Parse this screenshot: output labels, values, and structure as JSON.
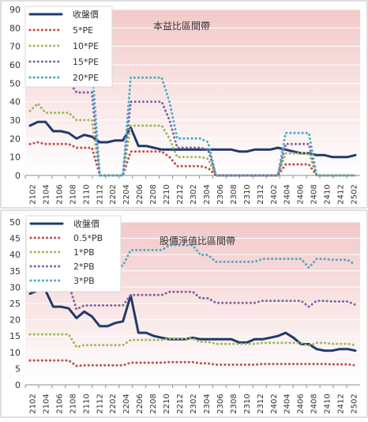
{
  "chart_data": [
    {
      "type": "line",
      "title": "本益比區間帶",
      "ylim": [
        0,
        90
      ],
      "yticks": [
        0,
        10,
        20,
        30,
        40,
        50,
        60,
        70,
        80,
        90
      ],
      "xticks": [
        "2102",
        "2104",
        "2106",
        "2108",
        "2110",
        "2112",
        "2202",
        "2204",
        "2206",
        "2208",
        "2210",
        "2212",
        "2302",
        "2304",
        "2306",
        "2308",
        "2310",
        "2312",
        "2402",
        "2404",
        "2406",
        "2408",
        "2410",
        "2412",
        "2502"
      ],
      "background_gradient": [
        "#f2c9c9",
        "#ffffff"
      ],
      "series": [
        {
          "name": "收盤價",
          "color": "#1f3a6b",
          "style": "solid",
          "values": [
            27,
            29,
            29,
            24,
            24,
            23,
            20,
            22,
            21,
            18,
            18,
            19,
            19,
            26,
            16,
            16,
            15,
            14,
            14,
            14,
            14,
            14,
            14,
            14,
            14,
            14,
            14,
            13,
            13,
            14,
            14,
            14,
            15,
            14,
            13,
            12,
            12,
            11,
            11,
            10,
            10,
            10,
            11
          ]
        },
        {
          "name": "5*PE",
          "color": "#c0504d",
          "style": "dotted",
          "values": [
            17,
            18,
            17,
            17,
            17,
            17,
            15,
            15,
            15,
            0,
            0,
            0,
            0,
            13,
            13,
            13,
            13,
            13,
            10,
            5,
            5,
            5,
            5,
            4,
            0,
            0,
            0,
            0,
            0,
            0,
            0,
            0,
            0,
            6,
            6,
            6,
            6,
            0,
            0,
            0,
            0,
            0,
            0
          ]
        },
        {
          "name": "10*PE",
          "color": "#9bbb59",
          "style": "dotted",
          "values": [
            35,
            39,
            34,
            34,
            34,
            34,
            30,
            30,
            30,
            0,
            0,
            0,
            0,
            27,
            27,
            27,
            27,
            27,
            20,
            10,
            10,
            10,
            10,
            9,
            0,
            0,
            0,
            0,
            0,
            0,
            0,
            0,
            0,
            12,
            12,
            12,
            12,
            0,
            0,
            0,
            0,
            0,
            0
          ]
        },
        {
          "name": "15*PE",
          "color": "#8064a2",
          "style": "dotted",
          "values": [
            52,
            58,
            51,
            51,
            51,
            51,
            45,
            45,
            45,
            0,
            0,
            0,
            0,
            40,
            40,
            40,
            40,
            40,
            30,
            15,
            15,
            15,
            15,
            14,
            0,
            0,
            0,
            0,
            0,
            0,
            0,
            0,
            0,
            17,
            17,
            17,
            17,
            0,
            0,
            0,
            0,
            0,
            0
          ]
        },
        {
          "name": "20*PE",
          "color": "#4bacc6",
          "style": "dotted",
          "values": [
            69,
            77,
            68,
            68,
            68,
            68,
            60,
            60,
            60,
            0,
            0,
            0,
            0,
            53,
            53,
            53,
            53,
            53,
            40,
            20,
            20,
            20,
            20,
            18,
            0,
            0,
            0,
            0,
            0,
            0,
            0,
            0,
            0,
            23,
            23,
            23,
            23,
            0,
            0,
            0,
            0,
            0,
            0
          ]
        }
      ]
    },
    {
      "type": "line",
      "title": "股價淨值比區間帶",
      "ylim": [
        0,
        50
      ],
      "yticks": [
        0,
        5,
        10,
        15,
        20,
        25,
        30,
        35,
        40,
        45,
        50
      ],
      "xticks": [
        "2102",
        "2104",
        "2106",
        "2108",
        "2110",
        "2112",
        "2202",
        "2204",
        "2206",
        "2208",
        "2210",
        "2212",
        "2302",
        "2304",
        "2306",
        "2308",
        "2310",
        "2312",
        "2402",
        "2404",
        "2406",
        "2408",
        "2410",
        "2412",
        "2502"
      ],
      "background_gradient": [
        "#f2c9c9",
        "#ffffff"
      ],
      "series": [
        {
          "name": "收盤價",
          "color": "#1f3a6b",
          "style": "solid",
          "values": [
            28,
            29,
            29,
            24,
            24,
            23.5,
            20.5,
            22.5,
            21,
            18,
            18,
            19,
            19.5,
            27.5,
            16,
            16,
            15,
            14.5,
            14,
            14,
            14,
            14.5,
            14,
            14,
            14,
            14,
            14,
            13,
            13,
            14,
            14,
            14.5,
            15,
            16,
            14.5,
            12.5,
            12.5,
            11,
            10.5,
            10.5,
            11,
            11,
            10.5
          ]
        },
        {
          "name": "0.5*PB",
          "color": "#c0504d",
          "style": "dotted",
          "values": [
            7.5,
            7.5,
            7.5,
            7.5,
            7.5,
            7.5,
            5.8,
            6,
            6,
            6,
            6,
            6,
            6,
            6.8,
            6.8,
            6.8,
            6.8,
            6.8,
            7,
            7,
            7,
            7,
            6.6,
            6.6,
            6.2,
            6.2,
            6.2,
            6.2,
            6.2,
            6.2,
            6.4,
            6.4,
            6.4,
            6.4,
            6.4,
            6.4,
            6.4,
            6.4,
            6.4,
            6.3,
            6.3,
            6.3,
            6
          ]
        },
        {
          "name": "1*PB",
          "color": "#9bbb59",
          "style": "dotted",
          "values": [
            15.5,
            15.5,
            15.5,
            15.5,
            15.5,
            15.5,
            11.6,
            12.2,
            12.2,
            12.2,
            12.2,
            12.2,
            12.2,
            13.8,
            13.8,
            13.8,
            13.8,
            13.8,
            14.2,
            14.2,
            14.2,
            14.2,
            13.2,
            13.2,
            12.6,
            12.6,
            12.6,
            12.6,
            12.6,
            12.6,
            12.9,
            12.9,
            12.9,
            12.9,
            12.9,
            12.9,
            12,
            12.9,
            12.9,
            12.6,
            12.6,
            12.6,
            12.2
          ]
        },
        {
          "name": "2*PB",
          "color": "#8064a2",
          "style": "dotted",
          "values": [
            31,
            31,
            31,
            31,
            31,
            31,
            23.2,
            24.4,
            24.4,
            24.4,
            24.4,
            24.4,
            24.4,
            27.6,
            27.6,
            27.6,
            27.6,
            27.6,
            28.6,
            28.6,
            28.6,
            28.6,
            26.6,
            26.6,
            25.2,
            25.2,
            25.2,
            25.2,
            25.2,
            25.2,
            25.8,
            25.8,
            25.8,
            25.8,
            25.8,
            25.8,
            24,
            25.8,
            25.8,
            25.6,
            25.6,
            25.6,
            24.6
          ]
        },
        {
          "name": "3*PB",
          "color": "#4bacc6",
          "style": "dotted",
          "values": [
            46.5,
            46.5,
            46.5,
            46.5,
            46.5,
            46.5,
            34.8,
            36.6,
            36.6,
            36.6,
            36.6,
            36.6,
            36.6,
            41.4,
            41.4,
            41.4,
            41.4,
            41.4,
            42.9,
            42.9,
            42.9,
            42.9,
            39.9,
            39.9,
            37.8,
            37.8,
            37.8,
            37.8,
            37.8,
            37.8,
            38.7,
            38.7,
            38.7,
            38.7,
            38.7,
            38.7,
            36,
            38.7,
            38.7,
            38.4,
            38.4,
            38.4,
            36.9
          ]
        }
      ]
    }
  ]
}
